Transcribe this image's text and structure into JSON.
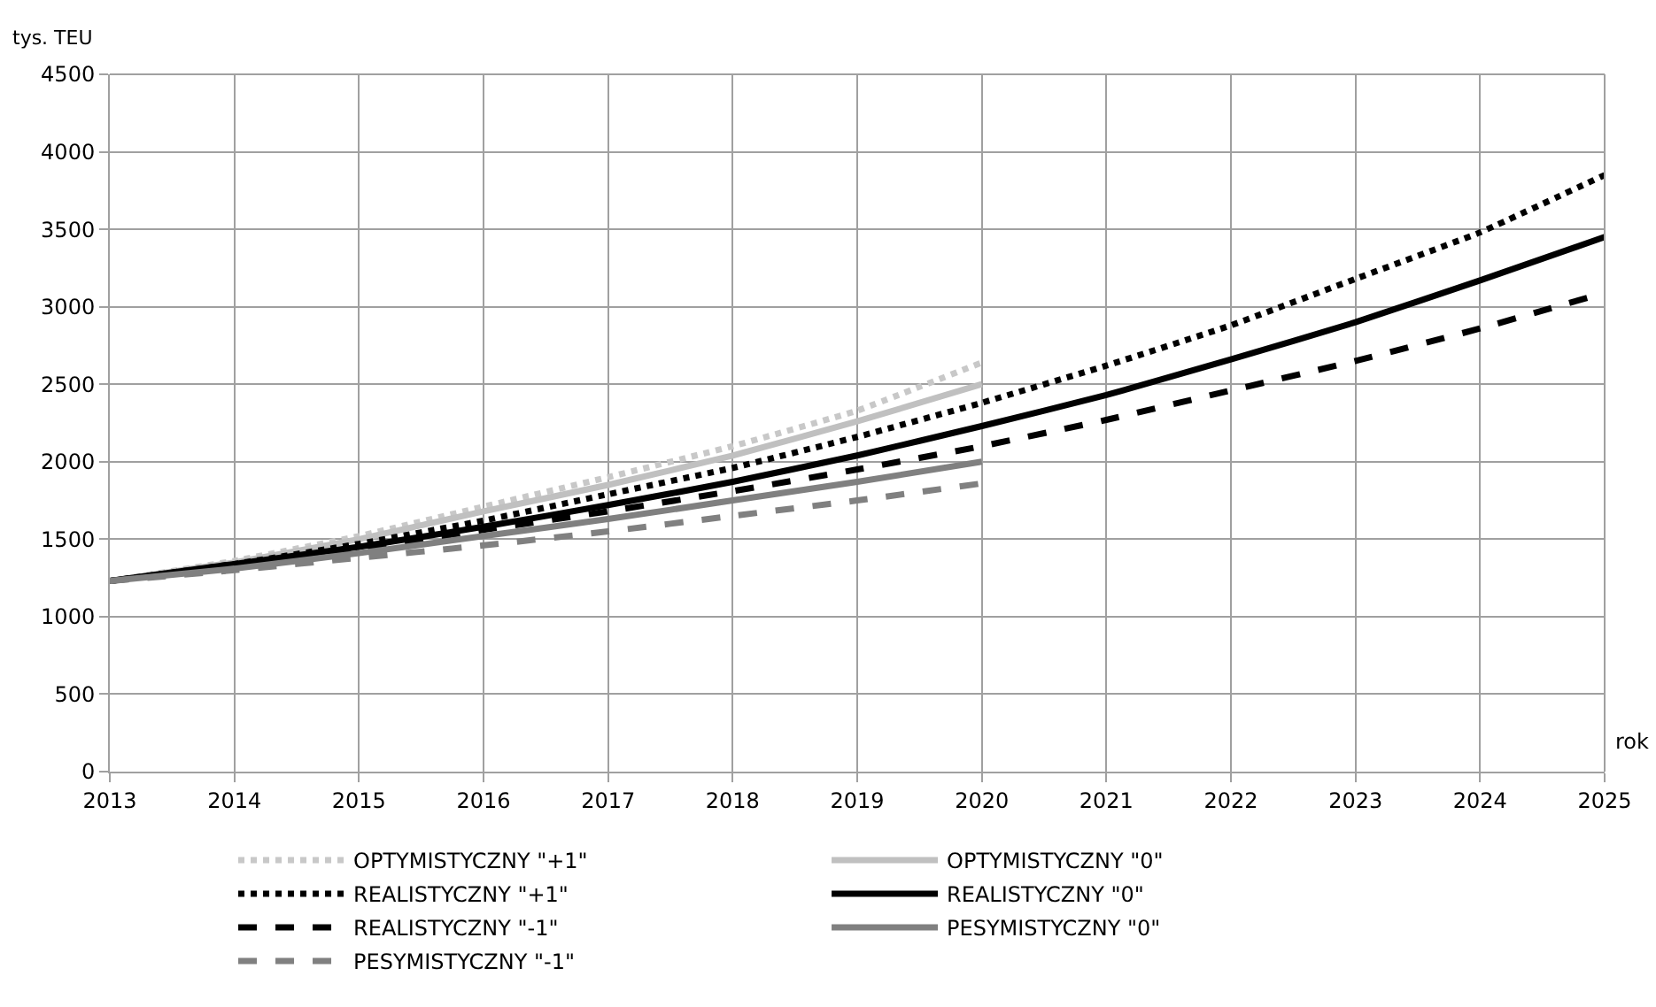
{
  "chart_data": {
    "type": "line",
    "xlabel": "rok",
    "ylabel": "tys. TEU",
    "x": [
      2013,
      2014,
      2015,
      2016,
      2017,
      2018,
      2019,
      2020,
      2021,
      2022,
      2023,
      2024,
      2025
    ],
    "xlim": [
      2013,
      2025
    ],
    "xticks": [
      2013,
      2014,
      2015,
      2016,
      2017,
      2018,
      2019,
      2020,
      2021,
      2022,
      2023,
      2024,
      2025
    ],
    "ylim": [
      0,
      4500
    ],
    "yticks": [
      0,
      500,
      1000,
      1500,
      2000,
      2500,
      3000,
      3500,
      4000,
      4500
    ],
    "grid": true,
    "legend": "bottom",
    "marker": "none",
    "series": [
      {
        "name": "OPTYMISTYCZNY \"+1\"",
        "color": "#c8c8c8",
        "line_style": "dotted",
        "values": [
          1230,
          1360,
          1520,
          1710,
          1900,
          2100,
          2330,
          2640,
          null,
          null,
          null,
          null,
          null
        ]
      },
      {
        "name": "OPTYMISTYCZNY \"0\"",
        "color": "#c0c0c0",
        "line_style": "solid",
        "values": [
          1230,
          1350,
          1500,
          1680,
          1850,
          2040,
          2260,
          2500,
          null,
          null,
          null,
          null,
          null
        ]
      },
      {
        "name": "REALISTYCZNY \"+1\"",
        "color": "#000000",
        "line_style": "dotted",
        "values": [
          1230,
          1340,
          1470,
          1620,
          1790,
          1960,
          2160,
          2380,
          2620,
          2880,
          3180,
          3480,
          3850
        ]
      },
      {
        "name": "REALISTYCZNY \"0\"",
        "color": "#000000",
        "line_style": "solid",
        "values": [
          1230,
          1340,
          1450,
          1580,
          1720,
          1870,
          2040,
          2230,
          2430,
          2660,
          2900,
          3170,
          3450
        ]
      },
      {
        "name": "REALISTYCZNY \"-1\"",
        "color": "#000000",
        "line_style": "dashed",
        "values": [
          1230,
          1330,
          1440,
          1560,
          1680,
          1810,
          1950,
          2100,
          2270,
          2460,
          2650,
          2860,
          3090
        ]
      },
      {
        "name": "PESYMISTYCZNY \"0\"",
        "color": "#808080",
        "line_style": "solid",
        "values": [
          1230,
          1310,
          1410,
          1520,
          1630,
          1750,
          1870,
          2000,
          null,
          null,
          null,
          null,
          null
        ]
      },
      {
        "name": "PESYMISTYCZNY \"-1\"",
        "color": "#808080",
        "line_style": "dashed",
        "values": [
          1230,
          1300,
          1380,
          1460,
          1550,
          1650,
          1750,
          1860,
          null,
          null,
          null,
          null,
          null
        ]
      }
    ]
  }
}
